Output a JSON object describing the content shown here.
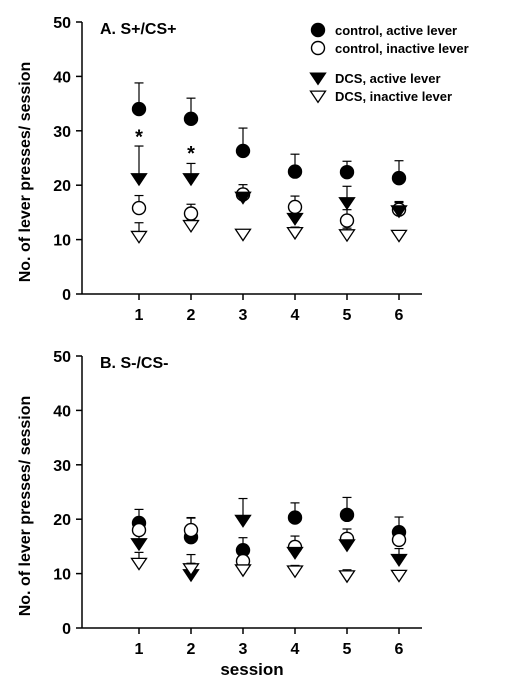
{
  "chart_data": [
    {
      "type": "scatter",
      "title": "A. S+/CS+",
      "ylabel": "No. of lever presses/ session",
      "xlabel": "",
      "x": [
        1,
        2,
        3,
        4,
        5,
        6
      ],
      "xticks": [
        "1",
        "2",
        "3",
        "4",
        "5",
        "6"
      ],
      "ylim": [
        0,
        50
      ],
      "yticks": [
        "0",
        "10",
        "20",
        "30",
        "40",
        "50"
      ],
      "grid": false,
      "legend": "top-right",
      "series": [
        {
          "name": "control, active lever",
          "marker": "filled-circle",
          "values": [
            34,
            32.2,
            26.3,
            22.5,
            22.4,
            21.3
          ],
          "error": [
            4.8,
            3.8,
            4.2,
            3.2,
            2,
            3.2
          ]
        },
        {
          "name": "control, inactive lever",
          "marker": "open-circle",
          "values": [
            15.8,
            14.8,
            18.3,
            16,
            13.5,
            15.5
          ],
          "error": [
            2.3,
            1.7,
            1.8,
            2,
            2,
            1.5
          ]
        },
        {
          "name": "DCS, active lever",
          "marker": "filled-triangle-down",
          "values": [
            21.2,
            21.2,
            17.8,
            13.9,
            16.8,
            15.3
          ],
          "error": [
            6,
            2.8,
            1.5,
            1.3,
            3,
            1.5
          ]
        },
        {
          "name": "DCS, inactive lever",
          "marker": "open-triangle-down",
          "values": [
            10.6,
            12.6,
            11,
            11.3,
            10.9,
            10.8
          ],
          "error": [
            2.5,
            1,
            0.7,
            1,
            1.2,
            0.8
          ]
        }
      ],
      "annotations": [
        {
          "text": "*",
          "x": 1,
          "y": 29.5
        },
        {
          "text": "*",
          "x": 2,
          "y": 26.5
        }
      ]
    },
    {
      "type": "scatter",
      "title": "B. S-/CS-",
      "ylabel": "No. of lever presses/ session",
      "xlabel": "session",
      "x": [
        1,
        2,
        3,
        4,
        5,
        6
      ],
      "xticks": [
        "1",
        "2",
        "3",
        "4",
        "5",
        "6"
      ],
      "ylim": [
        0,
        50
      ],
      "yticks": [
        "0",
        "10",
        "20",
        "30",
        "40",
        "50"
      ],
      "grid": false,
      "series": [
        {
          "name": "control, active lever",
          "marker": "filled-circle",
          "values": [
            19.3,
            16.7,
            14.3,
            20.3,
            20.8,
            17.6
          ],
          "error": [
            2.5,
            3.6,
            2.3,
            2.7,
            3.2,
            2.8
          ]
        },
        {
          "name": "control, inactive lever",
          "marker": "open-circle",
          "values": [
            18,
            18,
            12.3,
            14.9,
            16.4,
            16.2
          ],
          "error": [
            2,
            2.2,
            1.3,
            2,
            1.8,
            1.7
          ]
        },
        {
          "name": "DCS, active lever",
          "marker": "filled-triangle-down",
          "values": [
            15.5,
            9.8,
            19.8,
            13.9,
            15.3,
            12.6
          ],
          "error": [
            2.5,
            3.7,
            4,
            2,
            1.5,
            2
          ]
        },
        {
          "name": "DCS, inactive lever",
          "marker": "open-triangle-down",
          "values": [
            11.9,
            10.9,
            10.7,
            10.5,
            9.6,
            9.7
          ],
          "error": [
            2,
            1,
            1,
            1,
            1.1,
            0.8
          ]
        }
      ]
    }
  ]
}
